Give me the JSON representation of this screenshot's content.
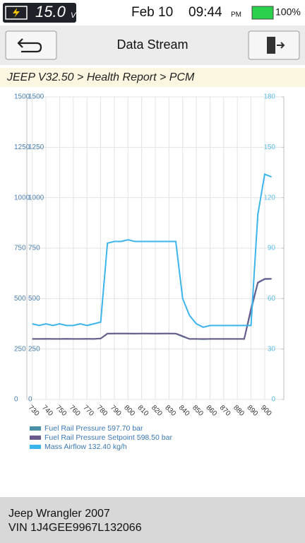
{
  "status_bar": {
    "voltage": "15.0",
    "voltage_unit": "V",
    "date": "Feb 10",
    "time": "09:44",
    "meridiem": "PM",
    "battery": "100%"
  },
  "header": {
    "title": "Data Stream"
  },
  "breadcrumb": "JEEP V32.50 > Health Report > PCM",
  "chart_data": {
    "type": "line",
    "x": [
      730,
      735,
      740,
      745,
      750,
      755,
      760,
      765,
      770,
      775,
      780,
      785,
      790,
      795,
      800,
      805,
      810,
      815,
      820,
      825,
      830,
      835,
      840,
      845,
      850,
      855,
      860,
      865,
      870,
      875,
      880,
      885,
      890,
      895,
      900,
      905
    ],
    "xlim": [
      726,
      914
    ],
    "xticks": [
      730,
      740,
      750,
      760,
      770,
      780,
      790,
      800,
      810,
      820,
      830,
      840,
      850,
      860,
      870,
      880,
      890,
      900
    ],
    "ylim": [
      0,
      1500
    ],
    "yticks": [
      0,
      250,
      500,
      750,
      1000,
      1250,
      1500
    ],
    "y2lim": [
      0,
      180
    ],
    "y2ticks": [
      0,
      30,
      60,
      90,
      120,
      150,
      180
    ],
    "grid": true,
    "series": [
      {
        "name": "Fuel Rail Pressure 597.70 bar",
        "color": "#4a8fa8",
        "values": [
          300,
          300,
          301,
          300,
          300,
          301,
          300,
          300,
          301,
          300,
          302,
          326,
          327,
          327,
          327,
          326,
          327,
          327,
          326,
          327,
          327,
          326,
          312,
          300,
          300,
          299,
          300,
          300,
          300,
          300,
          300,
          300,
          440,
          578,
          596,
          597.7
        ]
      },
      {
        "name": "Fuel Rail Pressure Setpoint 598.50 bar",
        "color": "#6b5b8c",
        "values": [
          300,
          300,
          300,
          300,
          300,
          300,
          300,
          300,
          300,
          300,
          302,
          327,
          327,
          327,
          327,
          327,
          327,
          327,
          327,
          327,
          327,
          327,
          314,
          300,
          300,
          300,
          300,
          300,
          300,
          300,
          300,
          300,
          450,
          580,
          598,
          598.5
        ]
      },
      {
        "name": "Mass Airflow 132.40 kg/h",
        "color": "#3cb5ec",
        "axis": "y2",
        "values": [
          45,
          44,
          45,
          44,
          45,
          44,
          44,
          45,
          44,
          45,
          46,
          93,
          94,
          94,
          95,
          94,
          94,
          94,
          94,
          94,
          94,
          94,
          60,
          50,
          45,
          43,
          44,
          44,
          44,
          44,
          44,
          44,
          44,
          110,
          134,
          132.4
        ]
      }
    ]
  },
  "footer": {
    "vehicle": "Jeep Wrangler 2007",
    "vin": "VIN 1J4GEE9967L132066"
  }
}
